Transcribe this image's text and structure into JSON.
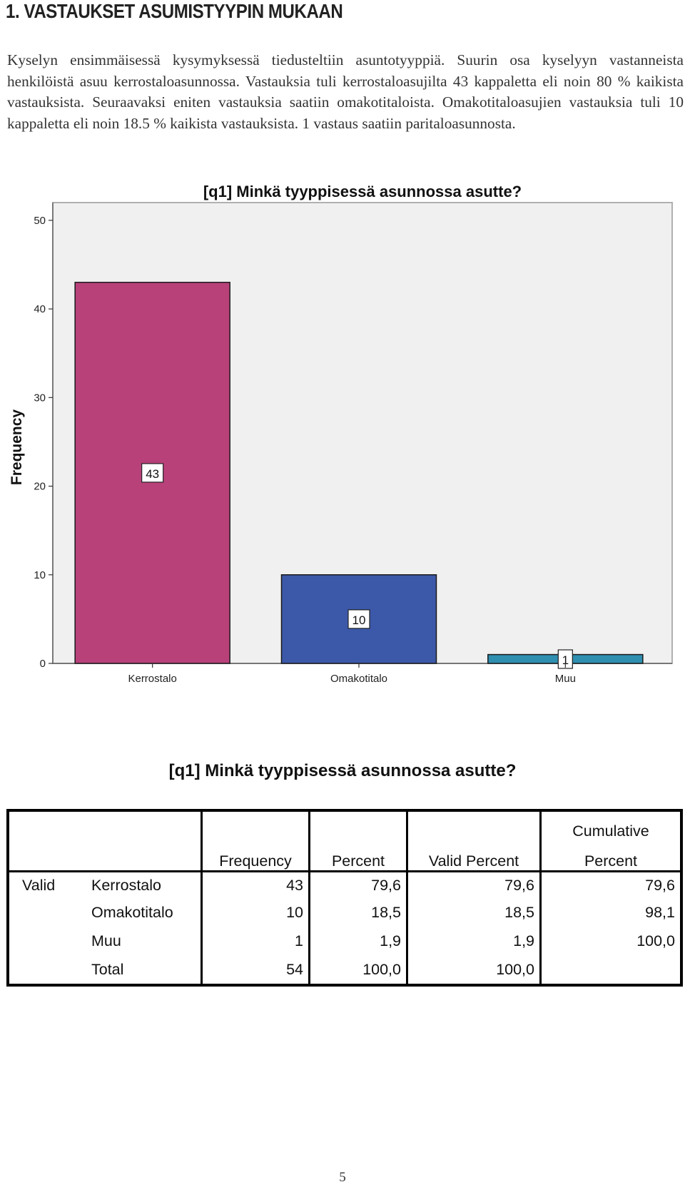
{
  "heading": "1. VASTAUKSET ASUMISTYYPIN MUKAAN",
  "intro": "Kyselyn ensimmäisessä kysymyksessä tiedusteltiin asuntotyyppiä. Suurin osa kyselyyn vastanneista henkilöistä asuu kerrostaloasunnossa. Vastauksia tuli kerrostaloasujilta 43 kappaletta eli noin 80 % kaikista vastauksista. Seuraavaksi eniten vastauksia saatiin omakotitaloista. Omakotitaloasujien vastauksia tuli 10 kappaletta eli noin 18.5 % kaikista vastauksista. 1 vastaus saatiin paritaloasunnosta.",
  "chart_data": {
    "type": "bar",
    "title": "[q1] Minkä tyyppisessä asunnossa asutte?",
    "xlabel": "",
    "ylabel": "Frequency",
    "ylim": [
      0,
      52
    ],
    "yticks": [
      0,
      10,
      20,
      30,
      40,
      50
    ],
    "grid": false,
    "categories": [
      "Kerrostalo",
      "Omakotitalo",
      "Muu"
    ],
    "values": [
      43,
      10,
      1
    ],
    "data_labels": [
      "43",
      "10",
      "1"
    ],
    "colors": [
      "#b8417a",
      "#3c58a8",
      "#2f8fb0"
    ],
    "background": "#f0f0f0"
  },
  "table": {
    "title": "[q1] Minkä tyyppisessä asunnossa asutte?",
    "header_top": [
      "",
      "",
      "",
      "",
      "",
      "Cumulative"
    ],
    "header_bottom": [
      "",
      "",
      "Frequency",
      "Percent",
      "Valid Percent",
      "Percent"
    ],
    "rows": [
      [
        "Valid",
        "Kerrostalo",
        "43",
        "79,6",
        "79,6",
        "79,6"
      ],
      [
        "",
        "Omakotitalo",
        "10",
        "18,5",
        "18,5",
        "98,1"
      ],
      [
        "",
        "Muu",
        "1",
        "1,9",
        "1,9",
        "100,0"
      ],
      [
        "",
        "Total",
        "54",
        "100,0",
        "100,0",
        ""
      ]
    ]
  },
  "page_number": "5"
}
